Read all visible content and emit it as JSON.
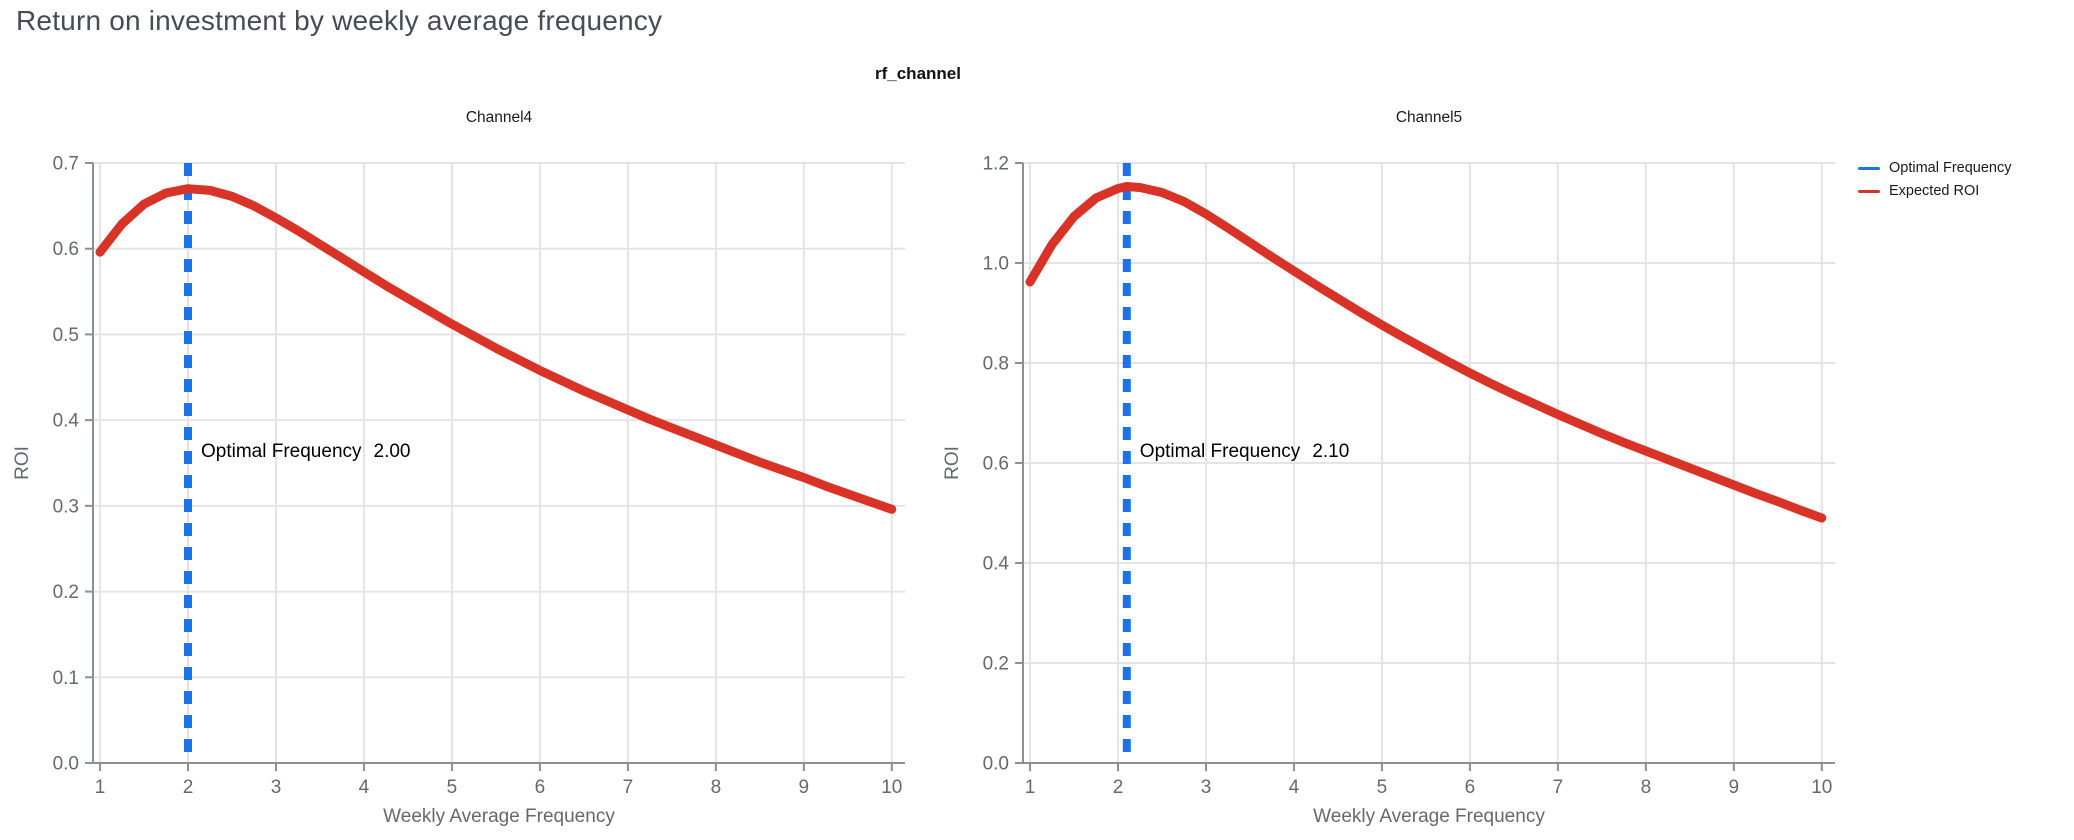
{
  "page": {
    "title": "Return on investment by weekly average frequency",
    "subtitle": "rf_channel"
  },
  "legend": {
    "items": [
      {
        "label": "Optimal Frequency",
        "color": "#1A73E8"
      },
      {
        "label": "Expected ROI",
        "color": "#D93327"
      }
    ]
  },
  "chart_data": [
    {
      "type": "line",
      "title": "Channel4",
      "xlabel": "Weekly Average Frequency",
      "ylabel": "ROI",
      "xlim": [
        0.92,
        10.15
      ],
      "ylim": [
        0,
        0.7
      ],
      "xticks": [
        1,
        2,
        3,
        4,
        5,
        6,
        7,
        8,
        9,
        10
      ],
      "yticks": [
        0,
        0.1,
        0.2,
        0.3,
        0.4,
        0.5,
        0.6,
        0.7
      ],
      "grid": true,
      "series": [
        {
          "name": "Expected ROI",
          "color": "#D93327",
          "x": [
            1,
            1.25,
            1.5,
            1.75,
            2,
            2.25,
            2.5,
            2.75,
            3,
            3.25,
            3.5,
            3.75,
            4,
            4.25,
            4.5,
            4.75,
            5,
            5.25,
            5.5,
            5.75,
            6,
            6.25,
            6.5,
            6.75,
            7,
            7.25,
            7.5,
            7.75,
            8,
            8.25,
            8.5,
            8.75,
            9,
            9.25,
            9.5,
            9.75,
            10
          ],
          "y": [
            0.596,
            0.629,
            0.652,
            0.665,
            0.67,
            0.668,
            0.661,
            0.65,
            0.636,
            0.621,
            0.605,
            0.589,
            0.573,
            0.557,
            0.542,
            0.527,
            0.512,
            0.498,
            0.484,
            0.471,
            0.458,
            0.446,
            0.434,
            0.423,
            0.412,
            0.401,
            0.391,
            0.381,
            0.371,
            0.361,
            0.351,
            0.342,
            0.333,
            0.323,
            0.314,
            0.305,
            0.296
          ]
        }
      ],
      "vline": {
        "name": "Optimal Frequency",
        "x": 2.0,
        "color": "#1A73E8",
        "style": "dashed"
      },
      "annotation": {
        "label": "Optimal Frequency",
        "value": "2.00"
      }
    },
    {
      "type": "line",
      "title": "Channel5",
      "xlabel": "Weekly Average Frequency",
      "ylabel": "ROI",
      "xlim": [
        0.92,
        10.15
      ],
      "ylim": [
        0,
        1.2
      ],
      "xticks": [
        1,
        2,
        3,
        4,
        5,
        6,
        7,
        8,
        9,
        10
      ],
      "yticks": [
        0,
        0.2,
        0.4,
        0.6,
        0.8,
        1.0,
        1.2
      ],
      "grid": true,
      "series": [
        {
          "name": "Expected ROI",
          "color": "#D93327",
          "x": [
            1,
            1.25,
            1.5,
            1.75,
            2,
            2.1,
            2.25,
            2.5,
            2.75,
            3,
            3.25,
            3.5,
            3.75,
            4,
            4.25,
            4.5,
            4.75,
            5,
            5.25,
            5.5,
            5.75,
            6,
            6.25,
            6.5,
            6.75,
            7,
            7.25,
            7.5,
            7.75,
            8,
            8.25,
            8.5,
            8.75,
            9,
            9.25,
            9.5,
            9.75,
            10
          ],
          "y": [
            0.962,
            1.037,
            1.093,
            1.13,
            1.149,
            1.153,
            1.151,
            1.141,
            1.123,
            1.098,
            1.07,
            1.041,
            1.012,
            0.984,
            0.956,
            0.929,
            0.902,
            0.876,
            0.851,
            0.827,
            0.803,
            0.78,
            0.758,
            0.737,
            0.717,
            0.697,
            0.678,
            0.659,
            0.641,
            0.624,
            0.607,
            0.59,
            0.573,
            0.556,
            0.539,
            0.523,
            0.506,
            0.49
          ]
        }
      ],
      "vline": {
        "name": "Optimal Frequency",
        "x": 2.1,
        "color": "#1A73E8",
        "style": "dashed"
      },
      "annotation": {
        "label": "Optimal Frequency",
        "value": "2.10"
      }
    }
  ],
  "style": {
    "grid_color": "#e4e4e4",
    "axis_color": "#8b8f93",
    "tick_label_color": "#65696e",
    "axis_title_color": "#65696e",
    "annotation_color": "#000000",
    "chart_title_color": "#1b1b1b"
  }
}
